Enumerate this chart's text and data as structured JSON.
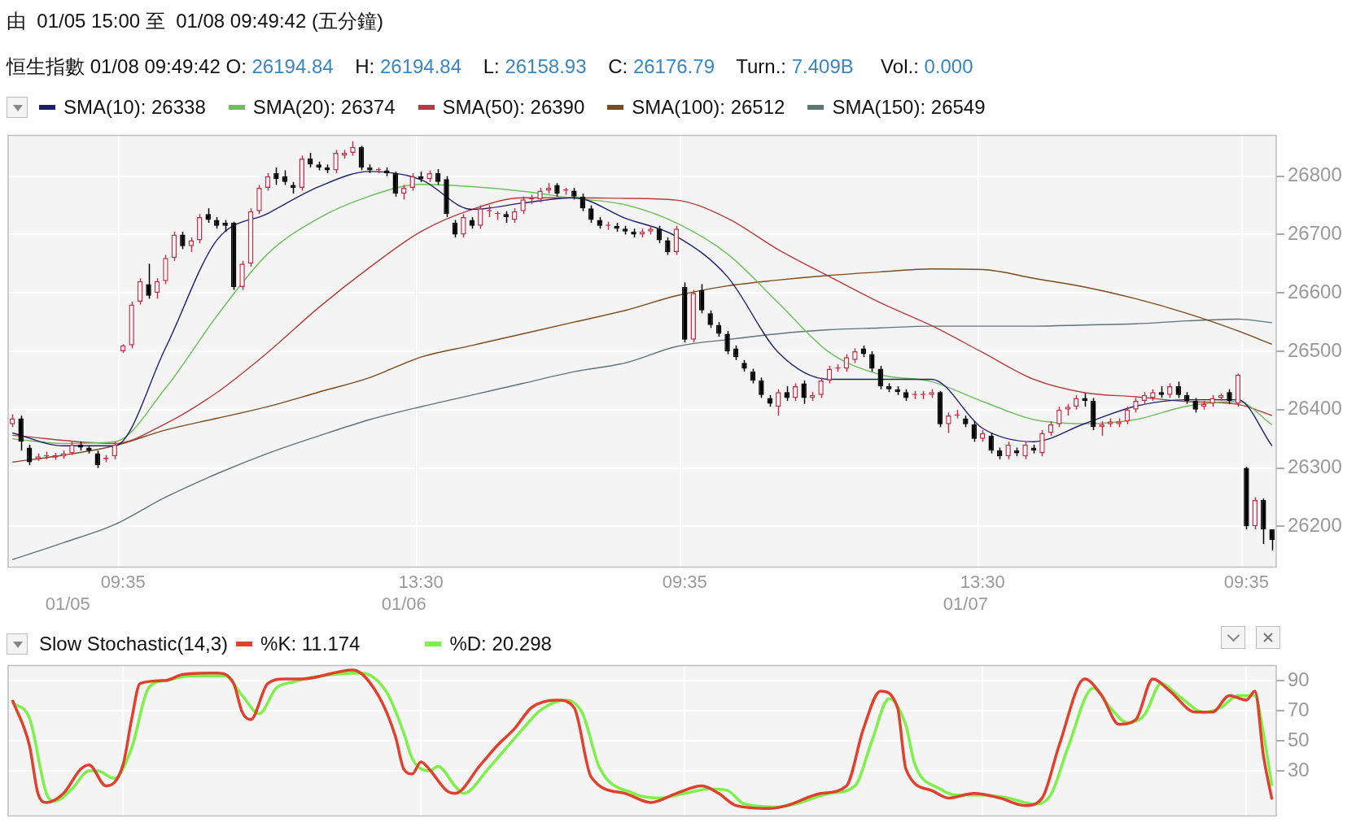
{
  "chart_data": [
    {
      "type": "candlestick",
      "title": "由  01/05 15:00 至  01/08 09:49:42 (五分鐘)",
      "subtitle": "恒生指數 01/08 09:49:42 O: 26194.84    H: 26194.84    L: 26158.93    C: 26176.79    Turn.: 7.409B     Vol.: 0.000",
      "categories": [
        null,
        null,
        null,
        null,
        null,
        null,
        null,
        null,
        null,
        null,
        null,
        null,
        null,
        "09:35",
        null,
        null,
        null,
        null,
        null,
        null,
        null,
        null,
        null,
        null,
        null,
        null,
        null,
        null,
        null,
        null,
        null,
        null,
        null,
        null,
        null,
        null,
        null,
        null,
        null,
        null,
        null,
        null,
        null,
        null,
        null,
        null,
        null,
        null,
        "13:30",
        null,
        null,
        null,
        null,
        null,
        null,
        null,
        null,
        null,
        null,
        null,
        null,
        null,
        null,
        null,
        null,
        null,
        null,
        null,
        null,
        null,
        null,
        null,
        null,
        null,
        null,
        null,
        null,
        null,
        null,
        "09:35",
        null,
        null,
        null,
        null,
        null,
        null,
        null,
        null,
        null,
        null,
        null,
        null,
        null,
        null,
        null,
        null,
        null,
        null,
        null,
        null,
        null,
        null,
        null,
        null,
        null,
        null,
        null,
        null,
        null,
        null,
        null,
        null,
        null,
        null,
        "13:30",
        null,
        null,
        null,
        null,
        null,
        null,
        null,
        null,
        null,
        null,
        null,
        null,
        null,
        null,
        null,
        null,
        null,
        null,
        null,
        null,
        null,
        null,
        null,
        null,
        null,
        null,
        null,
        null,
        null,
        null,
        "09:35",
        null,
        null,
        null
      ],
      "ohlc": [
        [
          26375,
          26392,
          26370,
          26385
        ],
        [
          26385,
          26390,
          26330,
          26345
        ],
        [
          26335,
          26340,
          26305,
          26310
        ],
        [
          26315,
          26325,
          26312,
          26320
        ],
        [
          26320,
          26328,
          26315,
          26320
        ],
        [
          26318,
          26326,
          26314,
          26322
        ],
        [
          26320,
          26330,
          26316,
          26325
        ],
        [
          26325,
          26345,
          26322,
          26340
        ],
        [
          26340,
          26345,
          26330,
          26335
        ],
        [
          26335,
          26338,
          26325,
          26330
        ],
        [
          26325,
          26330,
          26300,
          26305
        ],
        [
          26315,
          26322,
          26310,
          26318
        ],
        [
          26320,
          26345,
          26315,
          26340
        ],
        [
          26500,
          26512,
          26497,
          26510
        ],
        [
          26510,
          26585,
          26505,
          26580
        ],
        [
          26585,
          26625,
          26580,
          26620
        ],
        [
          26615,
          26650,
          26590,
          26595
        ],
        [
          26600,
          26625,
          26590,
          26620
        ],
        [
          26620,
          26665,
          26615,
          26660
        ],
        [
          26660,
          26705,
          26655,
          26700
        ],
        [
          26700,
          26705,
          26675,
          26680
        ],
        [
          26680,
          26695,
          26670,
          26690
        ],
        [
          26690,
          26735,
          26685,
          26730
        ],
        [
          26735,
          26745,
          26720,
          26725
        ],
        [
          26725,
          26730,
          26710,
          26715
        ],
        [
          26720,
          26725,
          26705,
          26715
        ],
        [
          26720,
          26722,
          26605,
          26610
        ],
        [
          26610,
          26655,
          26605,
          26650
        ],
        [
          26650,
          26745,
          26645,
          26740
        ],
        [
          26740,
          26785,
          26735,
          26780
        ],
        [
          26780,
          26805,
          26775,
          26800
        ],
        [
          26805,
          26815,
          26785,
          26795
        ],
        [
          26800,
          26810,
          26785,
          26790
        ],
        [
          26785,
          26790,
          26770,
          26780
        ],
        [
          26780,
          26835,
          26775,
          26830
        ],
        [
          26830,
          26840,
          26815,
          26820
        ],
        [
          26820,
          26825,
          26810,
          26815
        ],
        [
          26815,
          26820,
          26805,
          26810
        ],
        [
          26810,
          26845,
          26805,
          26840
        ],
        [
          26835,
          26845,
          26830,
          26840
        ],
        [
          26840,
          26860,
          26835,
          26850
        ],
        [
          26850,
          26852,
          26810,
          26815
        ],
        [
          26815,
          26820,
          26805,
          26810
        ],
        [
          26810,
          26815,
          26805,
          26810
        ],
        [
          26810,
          26815,
          26800,
          26805
        ],
        [
          26805,
          26808,
          26765,
          26770
        ],
        [
          26770,
          26785,
          26760,
          26780
        ],
        [
          26780,
          26805,
          26775,
          26800
        ],
        [
          26800,
          26808,
          26790,
          26795
        ],
        [
          26795,
          26810,
          26790,
          26805
        ],
        [
          26805,
          26812,
          26785,
          26790
        ],
        [
          26795,
          26800,
          26730,
          26735
        ],
        [
          26720,
          26725,
          26695,
          26700
        ],
        [
          26700,
          26735,
          26695,
          26730
        ],
        [
          26725,
          26730,
          26710,
          26715
        ],
        [
          26715,
          26750,
          26710,
          26745
        ],
        [
          26740,
          26750,
          26730,
          26740
        ],
        [
          26735,
          26740,
          26725,
          26735
        ],
        [
          26735,
          26740,
          26720,
          26730
        ],
        [
          26725,
          26745,
          26720,
          26740
        ],
        [
          26740,
          26765,
          26735,
          26760
        ],
        [
          26760,
          26768,
          26752,
          26760
        ],
        [
          26760,
          26780,
          26755,
          26775
        ],
        [
          26775,
          26788,
          26770,
          26780
        ],
        [
          26785,
          26788,
          26765,
          26770
        ],
        [
          26775,
          26780,
          26768,
          26775
        ],
        [
          26775,
          26780,
          26760,
          26765
        ],
        [
          26765,
          26770,
          26740,
          26745
        ],
        [
          26745,
          26750,
          26720,
          26725
        ],
        [
          26725,
          26730,
          26710,
          26715
        ],
        [
          26715,
          26722,
          26708,
          26715
        ],
        [
          26715,
          26720,
          26705,
          26710
        ],
        [
          26710,
          26715,
          26700,
          26705
        ],
        [
          26705,
          26710,
          26695,
          26700
        ],
        [
          26700,
          26710,
          26695,
          26705
        ],
        [
          26705,
          26715,
          26700,
          26710
        ],
        [
          26710,
          26715,
          26685,
          26690
        ],
        [
          26690,
          26695,
          26665,
          26670
        ],
        [
          26670,
          26715,
          26665,
          26710
        ],
        [
          26610,
          26618,
          26515,
          26520
        ],
        [
          26520,
          26605,
          26515,
          26600
        ],
        [
          26605,
          26615,
          26565,
          26570
        ],
        [
          26565,
          26570,
          26540,
          26545
        ],
        [
          26545,
          26550,
          26525,
          26530
        ],
        [
          26530,
          26535,
          26495,
          26500
        ],
        [
          26505,
          26510,
          26485,
          26490
        ],
        [
          26480,
          26485,
          26465,
          26470
        ],
        [
          26465,
          26470,
          26445,
          26450
        ],
        [
          26450,
          26455,
          26420,
          26425
        ],
        [
          26420,
          26425,
          26405,
          26410
        ],
        [
          26405,
          26435,
          26390,
          26430
        ],
        [
          26430,
          26440,
          26415,
          26420
        ],
        [
          26420,
          26445,
          26415,
          26440
        ],
        [
          26445,
          26450,
          26410,
          26420
        ],
        [
          26420,
          26430,
          26415,
          26425
        ],
        [
          26425,
          26455,
          26420,
          26450
        ],
        [
          26450,
          26475,
          26445,
          26470
        ],
        [
          26470,
          26478,
          26465,
          26470
        ],
        [
          26470,
          26495,
          26465,
          26490
        ],
        [
          26485,
          26505,
          26480,
          26500
        ],
        [
          26505,
          26510,
          26490,
          26495
        ],
        [
          26495,
          26500,
          26465,
          26470
        ],
        [
          26470,
          26475,
          26435,
          26440
        ],
        [
          26440,
          26445,
          26430,
          26435
        ],
        [
          26435,
          26440,
          26425,
          26430
        ],
        [
          26430,
          26435,
          26415,
          26420
        ],
        [
          26425,
          26432,
          26418,
          26425
        ],
        [
          26425,
          26432,
          26418,
          26425
        ],
        [
          26425,
          26435,
          26420,
          26430
        ],
        [
          26430,
          26432,
          26370,
          26375
        ],
        [
          26375,
          26395,
          26360,
          26390
        ],
        [
          26390,
          26400,
          26385,
          26390
        ],
        [
          26385,
          26390,
          26370,
          26375
        ],
        [
          26375,
          26380,
          26345,
          26350
        ],
        [
          26350,
          26365,
          26345,
          26360
        ],
        [
          26355,
          26360,
          26325,
          26330
        ],
        [
          26330,
          26335,
          26315,
          26320
        ],
        [
          26320,
          26345,
          26315,
          26340
        ],
        [
          26330,
          26335,
          26320,
          26325
        ],
        [
          26320,
          26345,
          26315,
          26340
        ],
        [
          26335,
          26340,
          26325,
          26330
        ],
        [
          26325,
          26365,
          26320,
          26360
        ],
        [
          26360,
          26380,
          26355,
          26375
        ],
        [
          26375,
          26405,
          26370,
          26400
        ],
        [
          26400,
          26410,
          26390,
          26405
        ],
        [
          26405,
          26425,
          26400,
          26420
        ],
        [
          26420,
          26428,
          26405,
          26415
        ],
        [
          26415,
          26420,
          26365,
          26370
        ],
        [
          26370,
          26380,
          26355,
          26375
        ],
        [
          26375,
          26385,
          26370,
          26380
        ],
        [
          26375,
          26385,
          26370,
          26380
        ],
        [
          26380,
          26405,
          26375,
          26400
        ],
        [
          26400,
          26420,
          26395,
          26415
        ],
        [
          26415,
          26430,
          26410,
          26425
        ],
        [
          26420,
          26435,
          26415,
          26430
        ],
        [
          26430,
          26440,
          26420,
          26425
        ],
        [
          26425,
          26445,
          26420,
          26440
        ],
        [
          26440,
          26448,
          26420,
          26425
        ],
        [
          26425,
          26430,
          26410,
          26415
        ],
        [
          26415,
          26420,
          26395,
          26400
        ],
        [
          26405,
          26415,
          26400,
          26410
        ],
        [
          26410,
          26425,
          26405,
          26420
        ],
        [
          26420,
          26428,
          26415,
          26425
        ],
        [
          26430,
          26435,
          26410,
          26415
        ],
        [
          26410,
          26462,
          26405,
          26460
        ],
        [
          26300,
          26302,
          26195,
          26200
        ],
        [
          26200,
          26250,
          26195,
          26245
        ],
        [
          26245,
          26248,
          26170,
          26195
        ],
        [
          26194.84,
          26194.84,
          26158.93,
          26176.79
        ]
      ],
      "series": [
        {
          "type": "line",
          "name": "SMA(10): 26338",
          "color": "#1f1f6e",
          "values": [
            26360,
            null,
            null,
            null,
            null,
            null,
            26338,
            null,
            null,
            null,
            null,
            null,
            26338,
            null,
            null,
            null,
            null,
            null,
            26506,
            null,
            null,
            null,
            null,
            null,
            26690,
            null,
            null,
            null,
            null,
            null,
            26736,
            null,
            null,
            null,
            null,
            null,
            26782,
            null,
            null,
            null,
            null,
            null,
            26808,
            null,
            null,
            null,
            null,
            null,
            26794,
            null,
            null,
            null,
            null,
            null,
            26743,
            null,
            null,
            null,
            null,
            null,
            26754,
            null,
            null,
            null,
            null,
            null,
            26763,
            null,
            null,
            null,
            null,
            null,
            26728,
            null,
            null,
            null,
            null,
            null,
            26697,
            null,
            null,
            null,
            null,
            null,
            26628,
            null,
            null,
            null,
            null,
            null,
            26498,
            null,
            null,
            null,
            null,
            null,
            26452,
            null,
            null,
            null,
            null,
            null,
            26452,
            null,
            null,
            null,
            null,
            null,
            26452,
            null,
            null,
            null,
            null,
            null,
            26368,
            null,
            null,
            null,
            null,
            null,
            26345,
            null,
            null,
            null,
            null,
            null,
            26376,
            null,
            null,
            null,
            null,
            null,
            26406,
            null,
            null,
            null,
            null,
            null,
            26417,
            null,
            null,
            null,
            null,
            null,
            26417,
            null,
            null,
            null,
            26338
          ]
        },
        {
          "type": "line",
          "name": "SMA(20): 26374",
          "color": "#6cbf5a",
          "values": [
            26350,
            null,
            null,
            null,
            null,
            null,
            26342,
            null,
            null,
            null,
            null,
            null,
            26345,
            null,
            null,
            null,
            null,
            null,
            26437,
            null,
            null,
            null,
            null,
            null,
            26560,
            null,
            null,
            null,
            null,
            null,
            26667,
            null,
            null,
            null,
            null,
            null,
            26728,
            null,
            null,
            null,
            null,
            null,
            26766,
            null,
            null,
            null,
            null,
            null,
            26786,
            null,
            null,
            null,
            null,
            null,
            26782,
            null,
            null,
            null,
            null,
            null,
            26774,
            null,
            null,
            null,
            null,
            null,
            26762,
            null,
            null,
            null,
            null,
            null,
            26751,
            null,
            null,
            null,
            null,
            null,
            26720,
            null,
            null,
            null,
            null,
            null,
            26667,
            null,
            null,
            null,
            null,
            null,
            26583,
            null,
            null,
            null,
            null,
            null,
            26498,
            null,
            null,
            null,
            null,
            null,
            26460,
            null,
            null,
            null,
            null,
            null,
            26448,
            null,
            null,
            null,
            null,
            null,
            26414,
            null,
            null,
            null,
            null,
            null,
            26383,
            null,
            null,
            null,
            null,
            null,
            26376,
            null,
            null,
            null,
            null,
            null,
            26383,
            null,
            null,
            null,
            null,
            null,
            26406,
            null,
            null,
            null,
            null,
            null,
            26414,
            null,
            null,
            null,
            26374
          ]
        },
        {
          "type": "line",
          "name": "SMA(50): 26390",
          "color": "#b53c3c",
          "values": [
            26356,
            null,
            null,
            null,
            null,
            null,
            null,
            null,
            null,
            null,
            null,
            null,
            26342,
            null,
            null,
            null,
            null,
            null,
            26376,
            null,
            null,
            null,
            null,
            null,
            26429,
            null,
            null,
            null,
            null,
            null,
            26498,
            null,
            null,
            null,
            null,
            null,
            26575,
            null,
            null,
            null,
            null,
            null,
            26644,
            null,
            null,
            null,
            null,
            null,
            26705,
            null,
            null,
            null,
            null,
            null,
            26743,
            null,
            null,
            null,
            null,
            null,
            26763,
            null,
            null,
            null,
            null,
            null,
            26763,
            null,
            null,
            null,
            null,
            null,
            26762,
            null,
            null,
            null,
            null,
            null,
            26759,
            null,
            null,
            null,
            null,
            null,
            26728,
            null,
            null,
            null,
            null,
            null,
            26674,
            null,
            null,
            null,
            null,
            null,
            26628,
            null,
            null,
            null,
            null,
            null,
            26583,
            null,
            null,
            null,
            null,
            null,
            26544,
            null,
            null,
            null,
            null,
            null,
            26498,
            null,
            null,
            null,
            null,
            null,
            26452,
            null,
            null,
            null,
            null,
            null,
            26429,
            null,
            null,
            null,
            null,
            null,
            26422,
            null,
            null,
            null,
            null,
            null,
            26414,
            null,
            null,
            null,
            null,
            null,
            26409,
            null,
            null,
            null,
            26390
          ]
        },
        {
          "type": "line",
          "name": "SMA(100): 26512",
          "color": "#7a4b1c",
          "values": [
            26310,
            null,
            null,
            null,
            null,
            null,
            26322,
            null,
            null,
            null,
            null,
            null,
            26338,
            null,
            null,
            null,
            null,
            null,
            26365,
            null,
            null,
            null,
            null,
            null,
            26385,
            null,
            null,
            null,
            null,
            null,
            26405,
            null,
            null,
            null,
            null,
            null,
            26430,
            null,
            null,
            null,
            null,
            null,
            26455,
            null,
            null,
            null,
            null,
            null,
            26490,
            null,
            null,
            null,
            null,
            null,
            26510,
            null,
            null,
            null,
            null,
            null,
            26530,
            null,
            null,
            null,
            null,
            null,
            26550,
            null,
            null,
            null,
            null,
            null,
            26570,
            null,
            null,
            null,
            null,
            null,
            26595,
            null,
            null,
            null,
            null,
            null,
            26612,
            null,
            null,
            null,
            null,
            null,
            26622,
            null,
            null,
            null,
            null,
            null,
            26630,
            null,
            null,
            null,
            null,
            null,
            26636,
            null,
            null,
            null,
            null,
            null,
            26641,
            null,
            null,
            null,
            null,
            null,
            26640,
            null,
            null,
            null,
            null,
            null,
            26625,
            null,
            null,
            null,
            null,
            null,
            26610,
            null,
            null,
            null,
            null,
            null,
            26590,
            null,
            null,
            null,
            null,
            null,
            26565,
            null,
            null,
            null,
            null,
            null,
            26535,
            null,
            null,
            null,
            26512
          ]
        },
        {
          "type": "line",
          "name": "SMA(150): 26549",
          "color": "#5f7474",
          "values": [
            26143,
            null,
            null,
            null,
            null,
            null,
            26172,
            null,
            null,
            null,
            null,
            null,
            26203,
            null,
            null,
            null,
            null,
            null,
            26250,
            null,
            null,
            null,
            null,
            null,
            26290,
            null,
            null,
            null,
            null,
            null,
            26325,
            null,
            null,
            null,
            null,
            null,
            26355,
            null,
            null,
            null,
            null,
            null,
            26383,
            null,
            null,
            null,
            null,
            null,
            26405,
            null,
            null,
            null,
            null,
            null,
            26425,
            null,
            null,
            null,
            null,
            null,
            26445,
            null,
            null,
            null,
            null,
            null,
            26465,
            null,
            null,
            null,
            null,
            null,
            26480,
            null,
            null,
            null,
            null,
            null,
            26508,
            null,
            null,
            null,
            null,
            null,
            26520,
            null,
            null,
            null,
            null,
            null,
            26530,
            null,
            null,
            null,
            null,
            null,
            26537,
            null,
            null,
            null,
            null,
            null,
            26540,
            null,
            null,
            null,
            null,
            null,
            26543,
            null,
            null,
            null,
            null,
            null,
            26543,
            null,
            null,
            null,
            null,
            null,
            26543,
            null,
            null,
            null,
            null,
            null,
            26545,
            null,
            null,
            null,
            null,
            null,
            26547,
            null,
            null,
            null,
            null,
            null,
            26552,
            null,
            null,
            null,
            null,
            null,
            26555,
            null,
            null,
            null,
            26549
          ]
        }
      ],
      "ylim": [
        26130,
        26870
      ],
      "yticks": [
        26200,
        26300,
        26400,
        26500,
        26600,
        26700,
        26800
      ],
      "grid": true,
      "legend": "top left",
      "annotations": [
        "01/05",
        "01/06",
        "01/07"
      ]
    },
    {
      "type": "line",
      "title": "Slow Stochastic(14,3)",
      "categories": [
        null,
        null,
        null,
        null,
        null,
        null,
        null,
        null,
        null,
        null,
        null,
        null,
        null,
        null,
        null,
        null,
        null,
        null,
        null,
        null,
        null,
        null,
        null,
        null,
        null,
        null,
        null,
        null,
        null,
        null,
        null,
        null,
        null,
        null,
        null,
        null,
        null,
        null,
        null,
        null,
        null,
        null,
        null,
        null,
        null,
        null,
        null,
        null,
        null,
        null,
        null,
        null,
        null,
        null,
        null,
        null,
        null,
        null,
        null,
        null,
        null,
        null,
        null,
        null,
        null,
        null,
        null,
        null,
        null,
        null,
        null,
        null,
        null,
        null,
        null,
        null,
        null,
        null,
        null,
        null,
        null,
        null,
        null,
        null,
        null,
        null,
        null,
        null,
        null,
        null,
        null,
        null,
        null,
        null,
        null,
        null,
        null,
        null,
        null,
        null,
        null,
        null,
        null,
        null,
        null,
        null,
        null,
        null,
        null,
        null,
        null,
        null,
        null,
        null,
        null,
        null,
        null,
        null,
        null,
        null,
        null,
        null,
        null,
        null,
        null,
        null,
        null,
        null,
        null,
        null,
        null,
        null,
        null,
        null,
        null,
        null,
        null,
        null,
        null,
        null,
        null,
        null,
        null,
        null,
        null,
        null,
        null,
        null,
        null
      ],
      "series": [
        {
          "name": "%K: 11.174",
          "color": "#e0402e",
          "values": [
            77,
            null,
            47,
            15,
            9,
            null,
            15,
            null,
            31,
            34,
            null,
            20,
            null,
            34,
            64,
            88,
            null,
            null,
            90,
            null,
            94,
            null,
            null,
            null,
            95,
            null,
            88,
            69,
            64,
            null,
            88,
            null,
            91,
            null,
            91,
            null,
            null,
            null,
            null,
            null,
            97,
            null,
            null,
            80,
            null,
            53,
            31,
            28,
            36,
            31,
            null,
            17,
            15,
            null,
            null,
            34,
            null,
            47,
            null,
            58,
            null,
            72,
            null,
            null,
            77,
            null,
            72,
            null,
            26,
            null,
            null,
            null,
            15,
            null,
            null,
            9,
            null,
            null,
            15,
            null,
            null,
            20,
            null,
            15,
            null,
            7,
            null,
            null,
            null,
            5,
            null,
            7,
            null,
            null,
            null,
            15,
            null,
            null,
            20,
            null,
            58,
            null,
            83,
            null,
            72,
            31,
            null,
            null,
            17,
            null,
            12,
            null,
            null,
            15,
            null,
            null,
            12,
            null,
            null,
            7,
            null,
            12,
            null,
            47,
            null,
            null,
            91,
            null,
            80,
            null,
            61,
            null,
            64,
            null,
            91,
            null,
            83,
            null,
            null,
            69,
            null,
            69,
            null,
            80,
            null,
            77,
            83,
            40,
            11
          ]
        },
        {
          "name": "%D: 20.298",
          "color": "#7ef04a",
          "values": [
            75,
            null,
            65,
            null,
            15,
            10,
            null,
            18,
            null,
            30,
            30,
            null,
            25,
            null,
            45,
            null,
            85,
            null,
            90,
            null,
            null,
            93,
            null,
            null,
            null,
            93,
            null,
            80,
            null,
            68,
            null,
            85,
            null,
            89,
            null,
            92,
            null,
            null,
            null,
            null,
            null,
            95,
            null,
            null,
            82,
            null,
            55,
            38,
            null,
            30,
            33,
            null,
            20,
            15,
            null,
            null,
            32,
            null,
            45,
            null,
            58,
            null,
            70,
            null,
            null,
            77,
            null,
            68,
            null,
            32,
            null,
            null,
            null,
            15,
            null,
            null,
            12,
            null,
            null,
            15,
            null,
            null,
            18,
            null,
            17,
            null,
            8,
            null,
            null,
            null,
            6,
            null,
            8,
            null,
            null,
            null,
            15,
            null,
            null,
            20,
            null,
            50,
            null,
            78,
            null,
            60,
            35,
            null,
            null,
            18,
            null,
            14,
            null,
            null,
            14,
            null,
            null,
            12,
            null,
            null,
            8,
            null,
            14,
            null,
            45,
            null,
            null,
            85,
            null,
            72,
            null,
            62,
            null,
            67,
            null,
            88,
            null,
            80,
            null,
            null,
            69,
            null,
            72,
            null,
            80,
            null,
            80,
            55,
            20
          ]
        }
      ],
      "ylim": [
        0,
        100
      ],
      "yticks": [
        30,
        50,
        70,
        90
      ],
      "grid": true,
      "legend": "top left",
      "tick_labels": "y"
    }
  ]
}
